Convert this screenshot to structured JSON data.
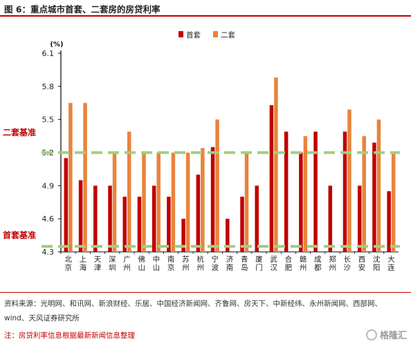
{
  "header": {
    "title": "图 6：重点城市首套、二套房的房贷利率"
  },
  "chart_data": {
    "type": "bar",
    "unit_label": "(%)",
    "categories": [
      "北京",
      "上海",
      "天津",
      "深圳",
      "广州",
      "佛山",
      "中山",
      "南京",
      "苏州",
      "杭州",
      "宁波",
      "济南",
      "青岛",
      "厦门",
      "武汉",
      "合肥",
      "赣州",
      "成都",
      "郑州",
      "长沙",
      "西安",
      "沈阳",
      "大连"
    ],
    "series": [
      {
        "name": "首套",
        "color": "#c00000",
        "values": [
          5.15,
          4.95,
          4.9,
          4.9,
          4.8,
          4.8,
          4.9,
          4.8,
          4.6,
          5.0,
          5.25,
          4.6,
          4.8,
          4.9,
          5.63,
          5.39,
          5.2,
          5.39,
          4.9,
          5.39,
          4.9,
          5.29,
          4.85
        ]
      },
      {
        "name": "二套",
        "color": "#e8843c",
        "values": [
          5.65,
          5.65,
          null,
          5.2,
          5.39,
          5.2,
          5.2,
          5.2,
          5.2,
          5.24,
          5.5,
          null,
          5.2,
          null,
          5.88,
          null,
          5.35,
          null,
          null,
          5.59,
          5.35,
          5.5,
          5.2
        ]
      }
    ],
    "ylim": [
      4.3,
      6.1
    ],
    "yticks": [
      4.3,
      4.6,
      4.9,
      5.2,
      5.5,
      5.8,
      6.1
    ],
    "reference_lines": [
      {
        "label": "二套基准",
        "value": 5.2,
        "color": "#9ed07e",
        "label_color": "#c00000"
      },
      {
        "label": "首套基准",
        "value": 4.35,
        "color": "#9ed07e",
        "label_color": "#c00000"
      }
    ],
    "legend_position": "top-center",
    "grid": false
  },
  "footer": {
    "source": "资料来源：光明网、和讯网、新浪财经、乐居、中国经济新闻网、齐鲁网、房天下、中新经纬、永州新闻网、西部网、wind、天风证券研究所",
    "note": "注：房贷利率信息根据最新新闻信息整理"
  },
  "watermark": {
    "text": "格隆汇"
  }
}
